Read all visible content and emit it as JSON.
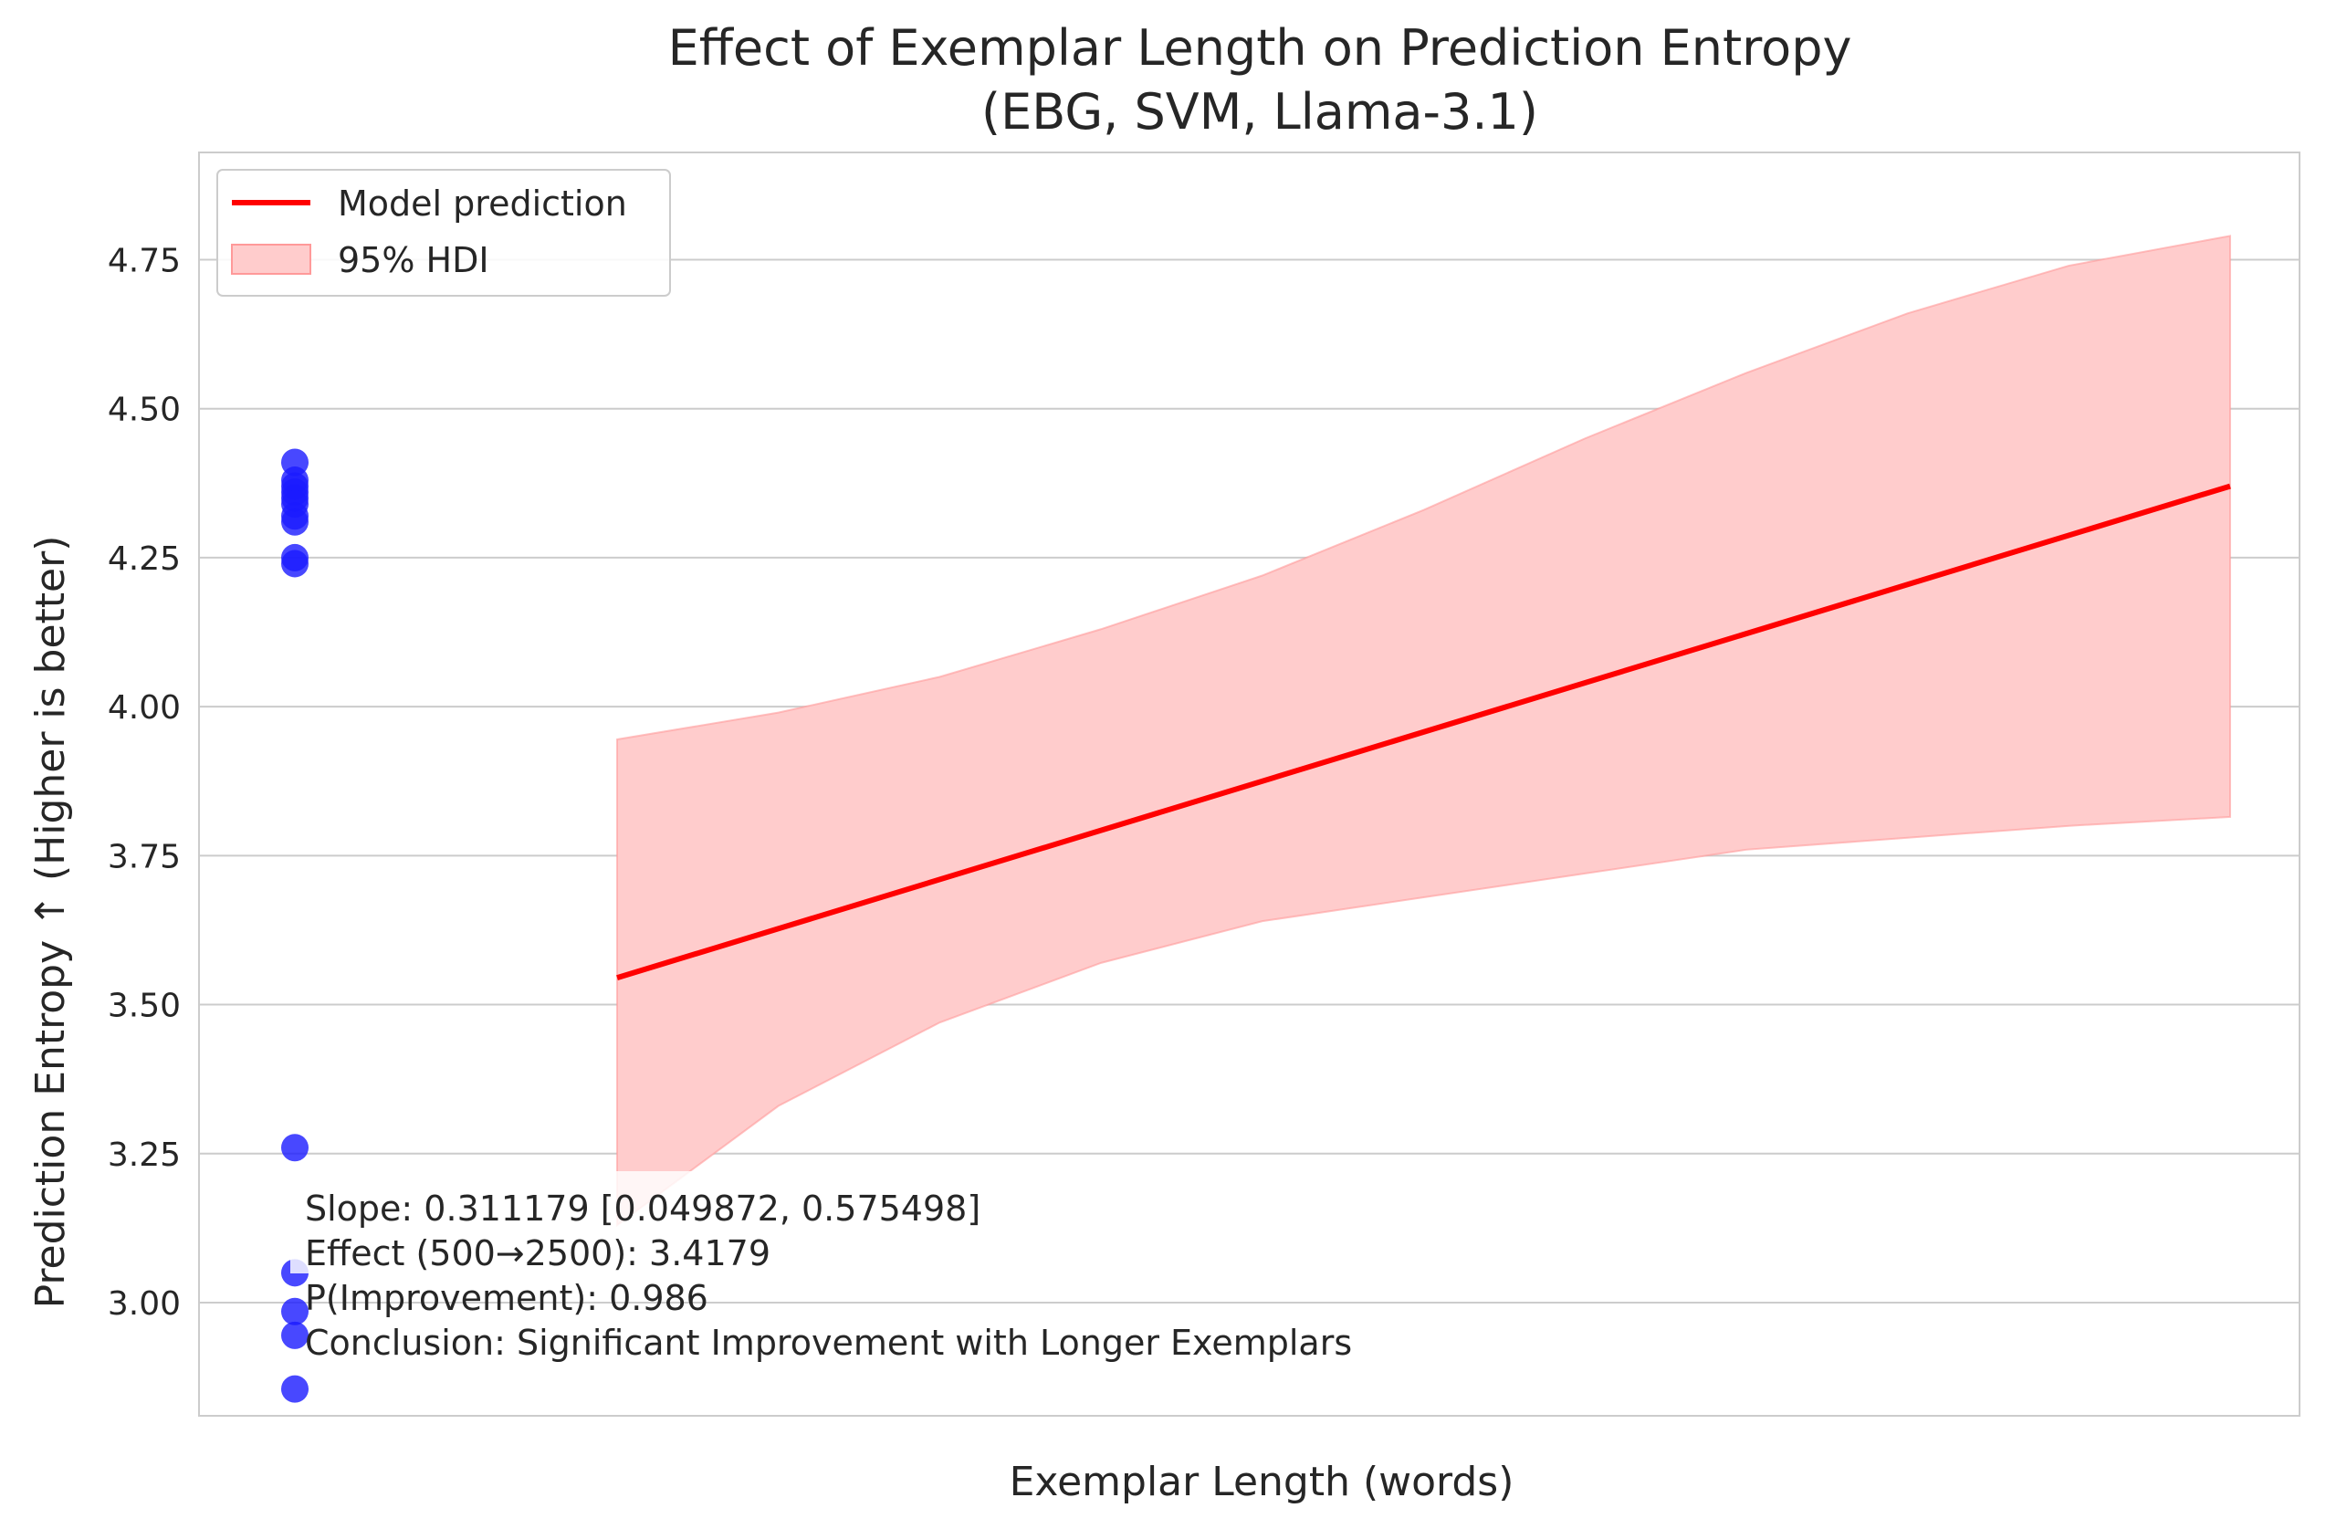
{
  "chart_data": {
    "type": "line",
    "title_line1": "Effect of Exemplar Length on Prediction Entropy",
    "title_line2": "(EBG, SVM, Llama-3.1)",
    "xlabel": "Exemplar Length (words)",
    "ylabel": "Prediction Entropy ↑ (Higher is better)",
    "ylim": [
      2.81,
      4.93
    ],
    "yticks": [
      3.0,
      3.25,
      3.5,
      3.75,
      4.0,
      4.25,
      4.5,
      4.75
    ],
    "ytick_labels": [
      "3.00",
      "3.25",
      "3.50",
      "3.75",
      "4.00",
      "4.25",
      "4.50",
      "4.75"
    ],
    "grid": "horizontal",
    "legend_placement": "top-left",
    "legend": {
      "line_label": "Model prediction",
      "band_label": "95% HDI"
    },
    "colors": {
      "line": "#ff0000",
      "band": "#ffcccc",
      "points": "#1a1aff",
      "grid": "#cccccc"
    },
    "scatter_points": {
      "name": "observed",
      "y": [
        4.41,
        4.38,
        4.37,
        4.36,
        4.35,
        4.34,
        4.32,
        4.31,
        4.25,
        4.24,
        3.26,
        3.05,
        2.985,
        2.945,
        2.855
      ]
    },
    "model_line": {
      "name": "Model prediction",
      "x_frac": [
        0.0,
        1.0
      ],
      "y": [
        3.545,
        4.37
      ]
    },
    "hdi_band": {
      "name": "95% HDI",
      "x_frac": [
        0.0,
        0.1,
        0.2,
        0.3,
        0.4,
        0.5,
        0.6,
        0.7,
        0.8,
        0.9,
        1.0
      ],
      "lower": [
        3.13,
        3.33,
        3.47,
        3.57,
        3.64,
        3.68,
        3.72,
        3.76,
        3.78,
        3.8,
        3.815
      ],
      "upper": [
        3.945,
        3.99,
        4.05,
        4.13,
        4.22,
        4.33,
        4.45,
        4.56,
        4.66,
        4.74,
        4.79
      ]
    },
    "annotation": [
      "Slope: 0.311179 [0.049872, 0.575498]",
      "Effect (500→2500): 3.4179",
      "P(Improvement): 0.986",
      "Conclusion: Significant Improvement with Longer Exemplars"
    ]
  }
}
